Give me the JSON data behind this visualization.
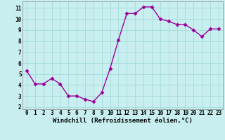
{
  "x": [
    0,
    1,
    2,
    3,
    4,
    5,
    6,
    7,
    8,
    9,
    10,
    11,
    12,
    13,
    14,
    15,
    16,
    17,
    18,
    19,
    20,
    21,
    22,
    23
  ],
  "y": [
    5.3,
    4.1,
    4.1,
    4.6,
    4.1,
    3.0,
    3.0,
    2.7,
    2.5,
    3.3,
    5.5,
    8.1,
    10.5,
    10.5,
    11.1,
    11.1,
    10.0,
    9.8,
    9.5,
    9.5,
    9.0,
    8.4,
    9.1,
    9.1
  ],
  "xlabel": "Windchill (Refroidissement éolien,°C)",
  "line_color": "#990099",
  "marker": "D",
  "marker_size": 2.5,
  "bg_color": "#c8eef0",
  "grid_color": "#aadddd",
  "axis_bg": "#c8eef0",
  "xlim": [
    -0.5,
    23.5
  ],
  "ylim": [
    1.8,
    11.6
  ],
  "yticks": [
    2,
    3,
    4,
    5,
    6,
    7,
    8,
    9,
    10,
    11
  ],
  "xticks": [
    0,
    1,
    2,
    3,
    4,
    5,
    6,
    7,
    8,
    9,
    10,
    11,
    12,
    13,
    14,
    15,
    16,
    17,
    18,
    19,
    20,
    21,
    22,
    23
  ],
  "tick_fontsize": 5.5,
  "label_fontsize": 6.5
}
